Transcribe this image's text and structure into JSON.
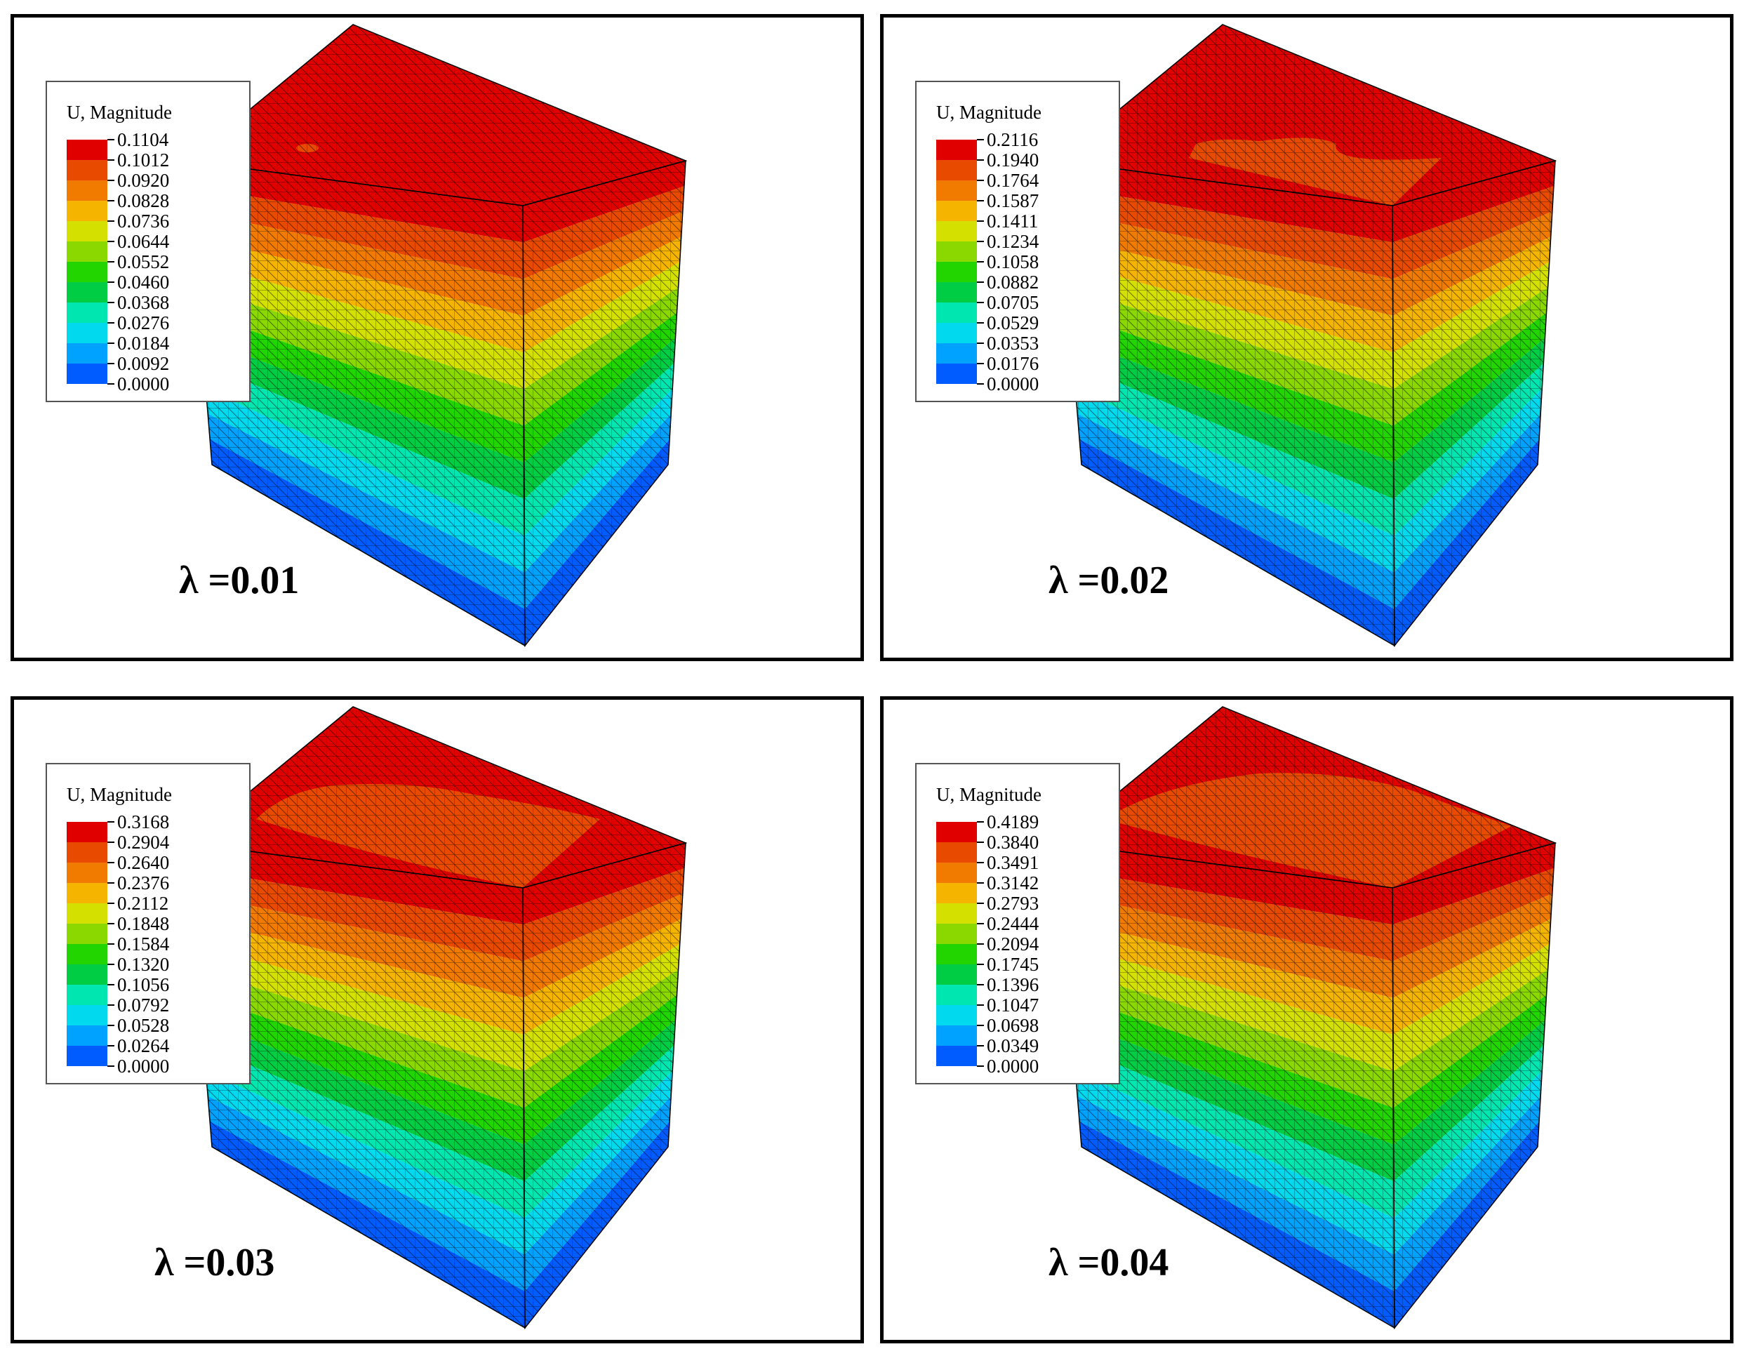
{
  "colors": [
    "#0000ff",
    "#005cff",
    "#00a2ff",
    "#00d9ee",
    "#00e6b0",
    "#00cc44",
    "#22d400",
    "#8ad800",
    "#d4e000",
    "#f5b400",
    "#f07b00",
    "#e84a00",
    "#e00000"
  ],
  "panels": [
    {
      "legend_title": "U, Magnitude",
      "values": [
        "0.1104",
        "0.1012",
        "0.0920",
        "0.0828",
        "0.0736",
        "0.0644",
        "0.0552",
        "0.0460",
        "0.0368",
        "0.0276",
        "0.0184",
        "0.0092",
        "0.0000"
      ],
      "lambda_label": "λ =0.01",
      "top_patch": "dot"
    },
    {
      "legend_title": "U, Magnitude",
      "values": [
        "0.2116",
        "0.1940",
        "0.1764",
        "0.1587",
        "0.1411",
        "0.1234",
        "0.1058",
        "0.0882",
        "0.0705",
        "0.0529",
        "0.0353",
        "0.0176",
        "0.0000"
      ],
      "lambda_label": "λ =0.02",
      "top_patch": "small"
    },
    {
      "legend_title": "U, Magnitude",
      "values": [
        "0.3168",
        "0.2904",
        "0.2640",
        "0.2376",
        "0.2112",
        "0.1848",
        "0.1584",
        "0.1320",
        "0.1056",
        "0.0792",
        "0.0528",
        "0.0264",
        "0.0000"
      ],
      "lambda_label": "λ =0.03",
      "top_patch": "medium"
    },
    {
      "legend_title": "U, Magnitude",
      "values": [
        "0.4189",
        "0.3840",
        "0.3491",
        "0.3142",
        "0.2793",
        "0.2444",
        "0.2094",
        "0.1745",
        "0.1396",
        "0.1047",
        "0.0698",
        "0.0349",
        "0.0000"
      ],
      "lambda_label": "λ =0.04",
      "top_patch": "large"
    }
  ]
}
